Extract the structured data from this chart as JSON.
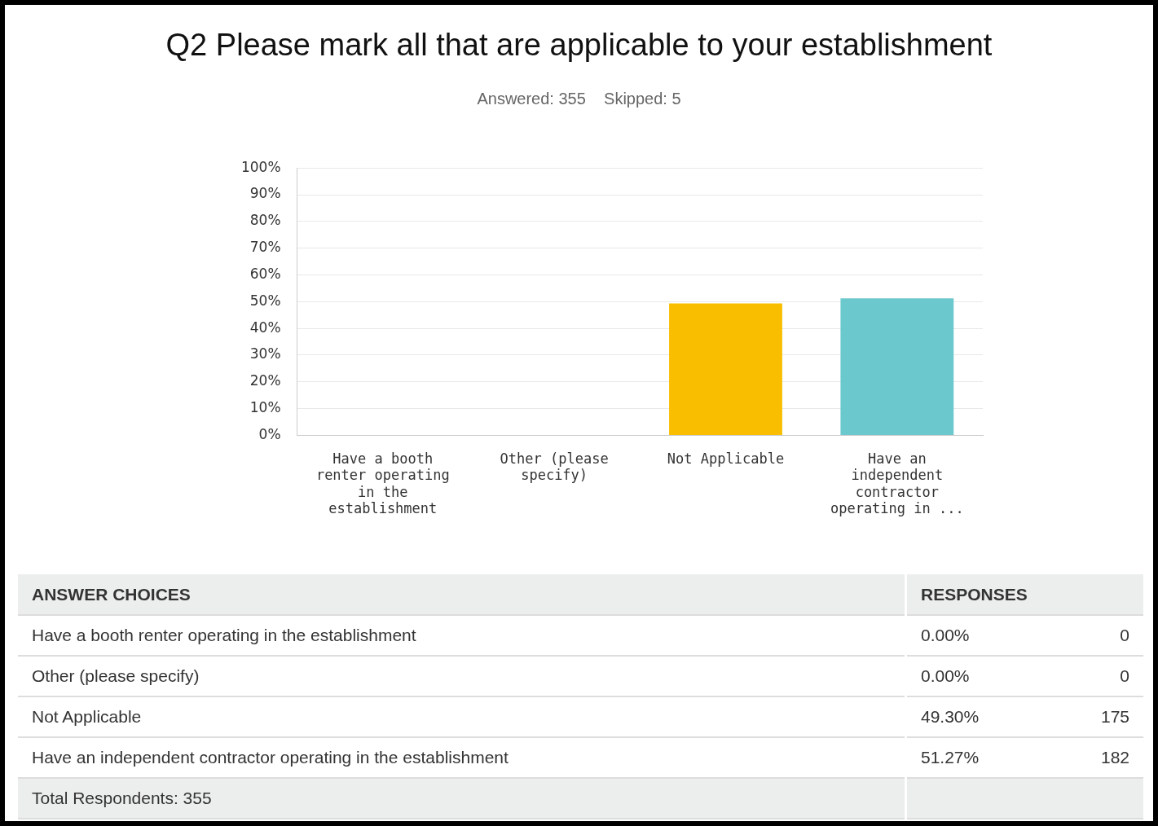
{
  "chart_data": {
    "type": "bar",
    "title": "Q2 Please mark all that are applicable to your establishment",
    "subtitle": "Answered: 355    Skipped: 5",
    "categories": [
      "Have a booth renter operating in the establishment",
      "Other (please specify)",
      "Not Applicable",
      "Have an independent contractor operating in ..."
    ],
    "values": [
      0,
      0,
      49.3,
      51.27
    ],
    "colors": [
      "#00bf6f",
      "#507cb6",
      "#f9be00",
      "#6bc8cd"
    ],
    "ylim": [
      0,
      100
    ],
    "yticks": [
      {
        "value": 0,
        "label": "0%"
      },
      {
        "value": 10,
        "label": "10%"
      },
      {
        "value": 20,
        "label": "20%"
      },
      {
        "value": 30,
        "label": "30%"
      },
      {
        "value": 40,
        "label": "40%"
      },
      {
        "value": 50,
        "label": "50%"
      },
      {
        "value": 60,
        "label": "60%"
      },
      {
        "value": 70,
        "label": "70%"
      },
      {
        "value": 80,
        "label": "80%"
      },
      {
        "value": 90,
        "label": "90%"
      },
      {
        "value": 100,
        "label": "100%"
      }
    ],
    "grid": "y",
    "annotations": [
      "ANSWER CHOICES",
      "RESPONSES",
      "Have a booth renter operating in the establishment",
      "Other (please specify)",
      "Not Applicable",
      "Have an independent contractor operating in the establishment",
      "0.00%",
      "0.00%",
      "49.30%",
      "51.27%",
      "0",
      "0",
      "175",
      "182",
      "Total Respondents: 355"
    ]
  }
}
